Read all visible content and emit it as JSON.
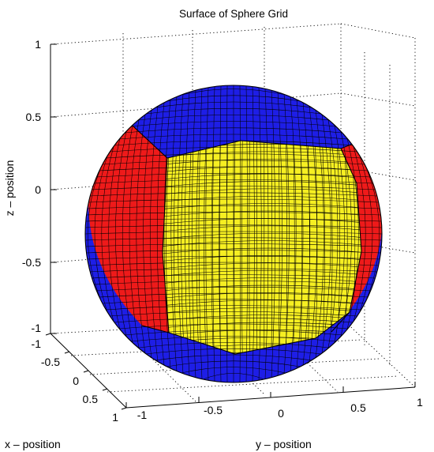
{
  "figure": {
    "title": "Surface of Sphere Grid",
    "axes": {
      "x": {
        "label": "x – position",
        "ticks": [
          "-1",
          "-0.5",
          "0",
          "0.5",
          "1"
        ]
      },
      "y": {
        "label": "y – position",
        "ticks": [
          "-1",
          "-0.5",
          "0",
          "0.5",
          "1"
        ]
      },
      "z": {
        "label": "z – position",
        "ticks": [
          "1",
          "0.5",
          "0",
          "-0.5",
          "-1"
        ]
      }
    },
    "grid": true,
    "box": "3d-dotted",
    "colors": {
      "top_bottom_patch": "#1e1ee6",
      "side_patch": "#ee1a1a",
      "front_patch": "#f6ef22",
      "mesh_line": "#000000",
      "background": "#ffffff"
    }
  }
}
